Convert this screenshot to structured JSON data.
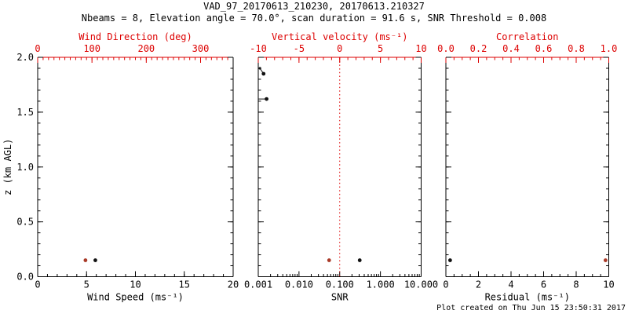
{
  "header": {
    "title": "VAD_97_20170613_210230, 20170613.210327",
    "subtitle": "Nbeams = 8, Elevation angle = 70.0°, scan duration = 91.6 s, SNR Threshold = 0.008"
  },
  "footer": {
    "created": "Plot created on Thu Jun 15 23:50:31 2017"
  },
  "colors": {
    "axis_black": "#000000",
    "axis_red": "#dd0000",
    "marker_black": "#111111",
    "marker_red": "#a93a28",
    "background": "#ffffff"
  },
  "chart_data": {
    "type": "scatter",
    "title": "VAD_97_20170613_210230, 20170613.210327",
    "subtitle": "Nbeams = 8, Elevation angle = 70.0°, scan duration = 91.6 s, SNR Threshold = 0.008",
    "ylabel": "z (km AGL)",
    "ylim": [
      0.0,
      2.0
    ],
    "y_majors": [
      {
        "v": 0.0,
        "label": "0.0"
      },
      {
        "v": 0.5,
        "label": "0.5"
      },
      {
        "v": 1.0,
        "label": "1.0"
      },
      {
        "v": 1.5,
        "label": "1.5"
      },
      {
        "v": 2.0,
        "label": "2.0"
      }
    ],
    "y_minor": 0.1,
    "grid": false,
    "legend": "none",
    "panels": [
      {
        "name": "wind",
        "bottom": {
          "label": "Wind Speed (ms⁻¹)",
          "min": 0,
          "max": 20,
          "scale": "linear",
          "minor": 1,
          "color": "#000000",
          "majors": [
            {
              "v": 0,
              "label": "0"
            },
            {
              "v": 5,
              "label": "5"
            },
            {
              "v": 10,
              "label": "10"
            },
            {
              "v": 15,
              "label": "15"
            },
            {
              "v": 20,
              "label": "20"
            }
          ]
        },
        "top": {
          "label": "Wind Direction (deg)",
          "min": 0,
          "max": 360,
          "scale": "linear",
          "minor": 10,
          "color": "#dd0000",
          "majors": [
            {
              "v": 0,
              "label": "0"
            },
            {
              "v": 100,
              "label": "100"
            },
            {
              "v": 200,
              "label": "200"
            },
            {
              "v": 300,
              "label": "300"
            }
          ]
        },
        "series": [
          {
            "name": "wind-speed",
            "axis": "bottom",
            "color": "#111111",
            "points": [
              {
                "x": 5.9,
                "z": 0.15,
                "r": 2.4
              }
            ]
          },
          {
            "name": "wind-direction",
            "axis": "top",
            "color": "#a93a28",
            "points": [
              {
                "x": 88,
                "z": 0.15,
                "r": 2.4
              }
            ]
          }
        ],
        "segments": []
      },
      {
        "name": "snr",
        "bottom": {
          "label": "SNR",
          "min": 0.001,
          "max": 10,
          "scale": "log",
          "color": "#000000",
          "majors": [
            {
              "v": 0.001,
              "label": "0.001"
            },
            {
              "v": 0.01,
              "label": "0.010"
            },
            {
              "v": 0.1,
              "label": "0.100"
            },
            {
              "v": 1,
              "label": "1.000"
            },
            {
              "v": 10,
              "label": "10.000"
            }
          ]
        },
        "top": {
          "label": "Vertical velocity (ms⁻¹)",
          "min": -10,
          "max": 10,
          "scale": "linear",
          "minor": 1,
          "color": "#dd0000",
          "majors": [
            {
              "v": -10,
              "label": "-10"
            },
            {
              "v": -5,
              "label": "-5"
            },
            {
              "v": 0,
              "label": "0"
            },
            {
              "v": 5,
              "label": "5"
            },
            {
              "v": 10,
              "label": "10"
            }
          ]
        },
        "refline": {
          "axis": "top",
          "x": 0,
          "color": "#dd0000",
          "style": "dotted"
        },
        "series": [
          {
            "name": "snr-profile",
            "axis": "bottom",
            "color": "#111111",
            "points": [
              {
                "x": 0.0011,
                "z": 1.9,
                "r": 1.6
              },
              {
                "x": 0.00135,
                "z": 1.85,
                "r": 2.4
              },
              {
                "x": 0.0016,
                "z": 1.62,
                "r": 2.4
              },
              {
                "x": 0.31,
                "z": 0.15,
                "r": 2.4
              }
            ]
          },
          {
            "name": "vertical-velocity",
            "axis": "top",
            "color": "#a93a28",
            "points": [
              {
                "x": -1.3,
                "z": 0.15,
                "r": 2.4
              }
            ]
          }
        ],
        "segments": [
          {
            "axis": "bottom",
            "x1": 0.0011,
            "z1": 1.9,
            "x2": 0.00135,
            "z2": 1.85,
            "color": "#111111"
          },
          {
            "axis": "bottom",
            "x1": 0.001,
            "z1": 1.62,
            "x2": 0.0016,
            "z2": 1.62,
            "color": "#111111"
          }
        ]
      },
      {
        "name": "residual",
        "bottom": {
          "label": "Residual (ms⁻¹)",
          "min": 0,
          "max": 10,
          "scale": "linear",
          "minor": 0.5,
          "color": "#000000",
          "majors": [
            {
              "v": 0,
              "label": "0"
            },
            {
              "v": 2,
              "label": "2"
            },
            {
              "v": 4,
              "label": "4"
            },
            {
              "v": 6,
              "label": "6"
            },
            {
              "v": 8,
              "label": "8"
            },
            {
              "v": 10,
              "label": "10"
            }
          ]
        },
        "top": {
          "label": "Correlation",
          "min": 0,
          "max": 1,
          "scale": "linear",
          "minor": 0.05,
          "color": "#dd0000",
          "majors": [
            {
              "v": 0,
              "label": "0.0"
            },
            {
              "v": 0.2,
              "label": "0.2"
            },
            {
              "v": 0.4,
              "label": "0.4"
            },
            {
              "v": 0.6,
              "label": "0.6"
            },
            {
              "v": 0.8,
              "label": "0.8"
            },
            {
              "v": 1,
              "label": "1.0"
            }
          ]
        },
        "series": [
          {
            "name": "residual",
            "axis": "bottom",
            "color": "#111111",
            "points": [
              {
                "x": 0.26,
                "z": 0.15,
                "r": 2.4
              }
            ]
          },
          {
            "name": "correlation",
            "axis": "top",
            "color": "#a93a28",
            "points": [
              {
                "x": 0.98,
                "z": 0.15,
                "r": 2.4
              }
            ]
          }
        ],
        "segments": []
      }
    ]
  }
}
